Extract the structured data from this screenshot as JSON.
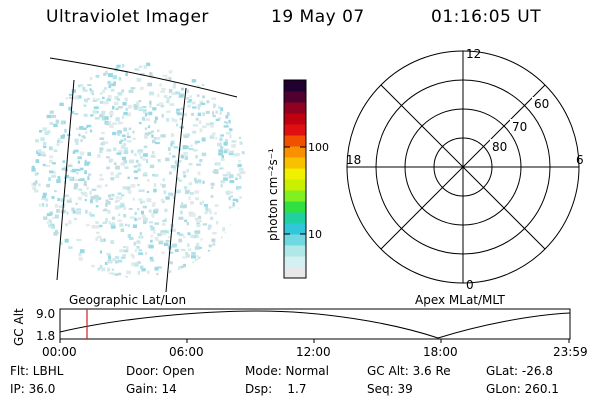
{
  "header": {
    "instrument": "Ultraviolet Imager",
    "date": "19 May 07",
    "time": "01:16:05 UT"
  },
  "colorbar": {
    "label": "photon cm⁻²s⁻¹",
    "ticks": [
      "100",
      "10"
    ],
    "colors": [
      "#e8e8e8",
      "#d4f0f0",
      "#b0e8e8",
      "#70d8e0",
      "#30c8d8",
      "#20d0a0",
      "#30e040",
      "#80f020",
      "#c8f000",
      "#f0f000",
      "#f8c000",
      "#f89000",
      "#f05000",
      "#e01010",
      "#c00010",
      "#900020",
      "#500030",
      "#200030"
    ]
  },
  "polar_plot": {
    "lat_labels": [
      "60",
      "70",
      "80"
    ],
    "mlt_labels": [
      "12",
      "18",
      "6",
      "0"
    ]
  },
  "altitude_plot": {
    "ylabel": "GC Alt",
    "yticks": [
      "9.0",
      "1.8"
    ],
    "left_label": "Geographic Lat/Lon",
    "right_label": "Apex MLat/MLT",
    "xticks": [
      "00:00",
      "06:00",
      "12:00",
      "18:00",
      "23:59"
    ],
    "marker_color": "#cc2020"
  },
  "info": {
    "filter": "Flt: LBHL",
    "door": "Door: Open",
    "mode": "Mode: Normal",
    "gc_alt": "GC Alt: 3.6 Re",
    "glat": "GLat: -26.8",
    "ip": "IP: 36.0",
    "gain": "Gain: 14",
    "dsp": "Dsp:    1.7",
    "seq": "Seq: 39",
    "glon": "GLon: 260.1"
  }
}
